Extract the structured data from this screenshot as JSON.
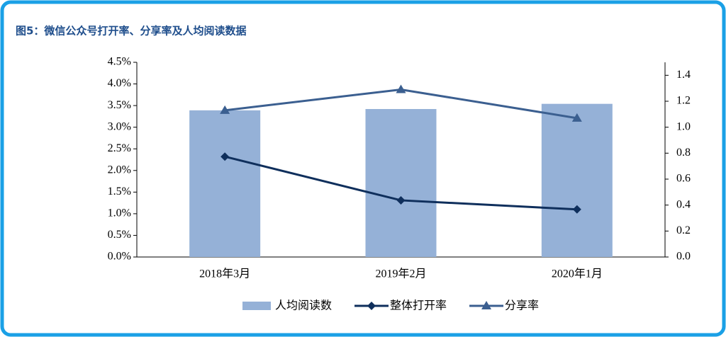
{
  "chart_data": {
    "type": "bar_line",
    "title": "图5：微信公众号打开率、分享率及人均阅读数据",
    "categories": [
      "2018年3月",
      "2019年2月",
      "2020年1月"
    ],
    "series": [
      {
        "name": "人均阅读数",
        "type": "bar",
        "axis": "y2",
        "color": "#95b1d7",
        "values": [
          1.13,
          1.14,
          1.18
        ]
      },
      {
        "name": "整体打开率",
        "type": "line",
        "marker": "diamond",
        "axis": "y",
        "color": "#0f2f5c",
        "values": [
          2.32,
          1.31,
          1.1
        ]
      },
      {
        "name": "分享率",
        "type": "line",
        "marker": "triangle",
        "axis": "y2",
        "color": "#3b5f90",
        "values": [
          1.13,
          1.29,
          1.07
        ]
      }
    ],
    "ylim": [
      0,
      4.5
    ],
    "yticks": [
      {
        "value": 0,
        "label": "0.0%"
      },
      {
        "value": 0.5,
        "label": "0.5%"
      },
      {
        "value": 1,
        "label": "1.0%"
      },
      {
        "value": 1.5,
        "label": "1.5%"
      },
      {
        "value": 2,
        "label": "2.0%"
      },
      {
        "value": 2.5,
        "label": "2.5%"
      },
      {
        "value": 3,
        "label": "3.0%"
      },
      {
        "value": 3.5,
        "label": "3.5%"
      },
      {
        "value": 4,
        "label": "4.0%"
      },
      {
        "value": 4.5,
        "label": "4.5%"
      }
    ],
    "y2lim": [
      0,
      1.5
    ],
    "y2ticks": [
      {
        "value": 0,
        "label": "0.0"
      },
      0.2,
      0.4,
      0.6,
      0.8,
      {
        "value": 1,
        "label": "1.0"
      },
      1.2,
      1.4
    ]
  }
}
